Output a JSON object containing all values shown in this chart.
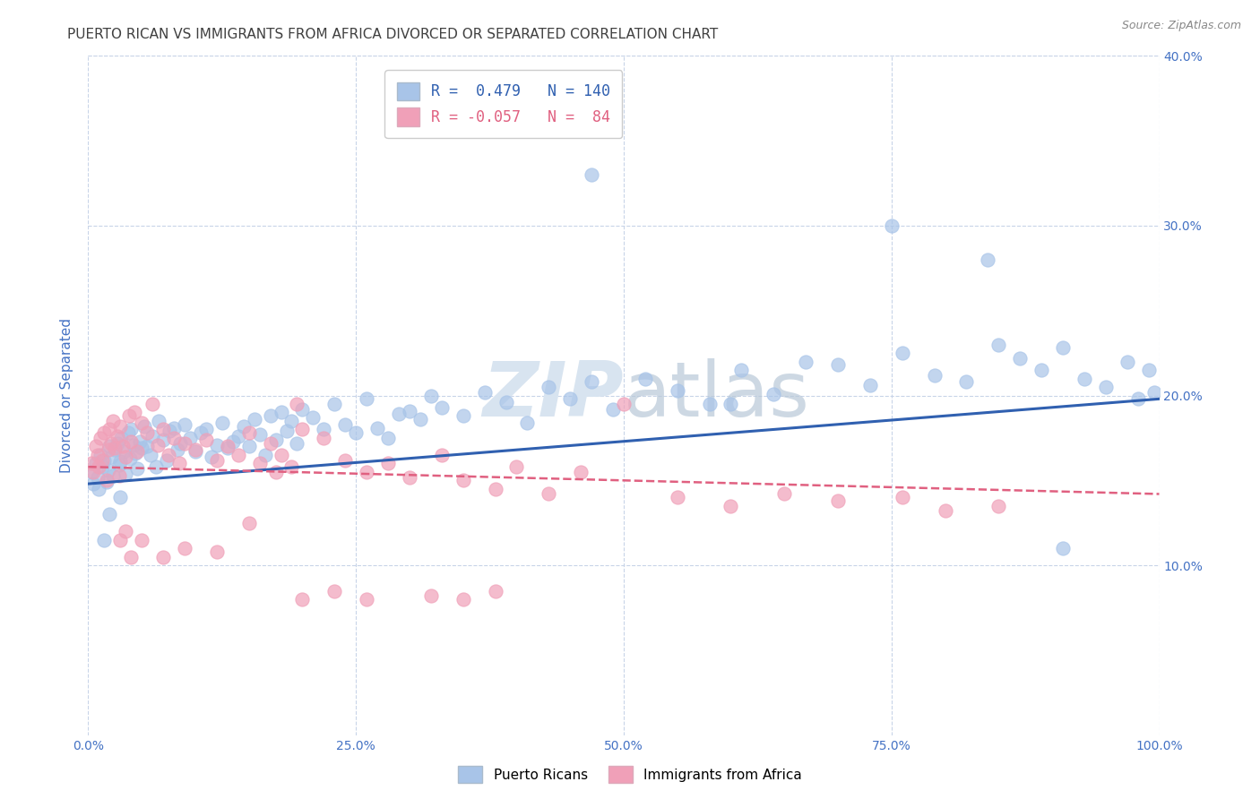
{
  "title": "PUERTO RICAN VS IMMIGRANTS FROM AFRICA DIVORCED OR SEPARATED CORRELATION CHART",
  "source": "Source: ZipAtlas.com",
  "ylabel": "Divorced or Separated",
  "watermark": "ZIPatlas",
  "legend_line1": "R =  0.479   N = 140",
  "legend_line2": "R = -0.057   N =  84",
  "legend_label1": "Puerto Ricans",
  "legend_label2": "Immigrants from Africa",
  "scatter_color_blue": "#a8c4e8",
  "scatter_color_pink": "#f0a0b8",
  "line_color_blue": "#3060b0",
  "line_color_pink": "#e06080",
  "background_color": "#ffffff",
  "grid_color": "#c8d4e8",
  "title_color": "#404040",
  "axis_label_color": "#4472c4",
  "watermark_color": "#d8e4f0",
  "xlim": [
    0,
    100
  ],
  "ylim": [
    0,
    40
  ],
  "blue_line_x": [
    0,
    100
  ],
  "blue_line_y": [
    14.8,
    19.8
  ],
  "pink_line_x": [
    0,
    100
  ],
  "pink_line_y": [
    15.8,
    14.2
  ],
  "blue_scatter_x": [
    0.3,
    0.5,
    0.7,
    0.9,
    1.0,
    1.1,
    1.3,
    1.5,
    1.7,
    1.9,
    2.0,
    2.1,
    2.3,
    2.5,
    2.7,
    2.9,
    3.0,
    3.1,
    3.3,
    3.5,
    3.7,
    3.9,
    4.0,
    4.2,
    4.4,
    4.6,
    4.8,
    5.0,
    5.2,
    5.5,
    5.8,
    6.0,
    6.3,
    6.6,
    7.0,
    7.3,
    7.6,
    8.0,
    8.3,
    8.6,
    9.0,
    9.5,
    10.0,
    10.5,
    11.0,
    11.5,
    12.0,
    12.5,
    13.0,
    13.5,
    14.0,
    14.5,
    15.0,
    15.5,
    16.0,
    16.5,
    17.0,
    17.5,
    18.0,
    18.5,
    19.0,
    19.5,
    20.0,
    21.0,
    22.0,
    23.0,
    24.0,
    25.0,
    26.0,
    27.0,
    28.0,
    29.0,
    30.0,
    31.0,
    32.0,
    33.0,
    35.0,
    37.0,
    39.0,
    41.0,
    43.0,
    45.0,
    47.0,
    49.0,
    52.0,
    55.0,
    58.0,
    61.0,
    64.0,
    67.0,
    70.0,
    73.0,
    76.0,
    79.0,
    82.0,
    85.0,
    87.0,
    89.0,
    91.0,
    93.0,
    95.0,
    97.0,
    98.0,
    99.0,
    99.5,
    47.0,
    60.0,
    75.0,
    84.0,
    91.0,
    1.5,
    2.0,
    3.0
  ],
  "blue_scatter_y": [
    15.5,
    14.8,
    16.0,
    15.2,
    14.5,
    16.5,
    15.8,
    16.2,
    14.9,
    15.6,
    17.0,
    16.4,
    15.3,
    16.8,
    17.2,
    15.9,
    16.1,
    17.5,
    16.7,
    15.4,
    17.8,
    16.3,
    18.0,
    17.1,
    16.6,
    15.7,
    17.3,
    16.9,
    18.2,
    17.0,
    16.5,
    17.6,
    15.8,
    18.5,
    17.4,
    16.2,
    17.9,
    18.1,
    16.8,
    17.2,
    18.3,
    17.5,
    16.7,
    17.8,
    18.0,
    16.4,
    17.1,
    18.4,
    16.9,
    17.3,
    17.6,
    18.2,
    17.0,
    18.6,
    17.7,
    16.5,
    18.8,
    17.4,
    19.0,
    17.9,
    18.5,
    17.2,
    19.2,
    18.7,
    18.0,
    19.5,
    18.3,
    17.8,
    19.8,
    18.1,
    17.5,
    18.9,
    19.1,
    18.6,
    20.0,
    19.3,
    18.8,
    20.2,
    19.6,
    18.4,
    20.5,
    19.8,
    20.8,
    19.2,
    21.0,
    20.3,
    19.5,
    21.5,
    20.1,
    22.0,
    21.8,
    20.6,
    22.5,
    21.2,
    20.8,
    23.0,
    22.2,
    21.5,
    22.8,
    21.0,
    20.5,
    22.0,
    19.8,
    21.5,
    20.2,
    33.0,
    19.5,
    30.0,
    28.0,
    11.0,
    11.5,
    13.0,
    14.0
  ],
  "pink_scatter_x": [
    0.3,
    0.5,
    0.7,
    0.9,
    1.0,
    1.1,
    1.3,
    1.5,
    1.7,
    1.9,
    2.0,
    2.1,
    2.3,
    2.5,
    2.7,
    2.9,
    3.0,
    3.2,
    3.5,
    3.8,
    4.0,
    4.3,
    4.6,
    5.0,
    5.5,
    6.0,
    6.5,
    7.0,
    7.5,
    8.0,
    8.5,
    9.0,
    10.0,
    11.0,
    12.0,
    13.0,
    14.0,
    15.0,
    16.0,
    17.0,
    18.0,
    19.0,
    20.0,
    22.0,
    24.0,
    26.0,
    28.0,
    30.0,
    33.0,
    35.0,
    38.0,
    40.0,
    43.0,
    46.0,
    50.0,
    55.0,
    60.0,
    65.0,
    70.0,
    76.0,
    80.0,
    85.0,
    3.5,
    5.0,
    7.0,
    9.0,
    12.0,
    15.0,
    20.0,
    23.0,
    26.0,
    32.0,
    38.0,
    3.0,
    4.0,
    17.5,
    19.5,
    35.0
  ],
  "pink_scatter_y": [
    16.0,
    15.5,
    17.0,
    16.5,
    15.8,
    17.5,
    16.2,
    17.8,
    15.0,
    16.8,
    18.0,
    17.2,
    18.5,
    16.9,
    17.6,
    15.3,
    18.2,
    17.0,
    16.4,
    18.8,
    17.3,
    19.0,
    16.7,
    18.4,
    17.8,
    19.5,
    17.1,
    18.0,
    16.5,
    17.5,
    16.0,
    17.2,
    16.8,
    17.4,
    16.2,
    17.0,
    16.5,
    17.8,
    16.0,
    17.2,
    16.5,
    15.8,
    18.0,
    17.5,
    16.2,
    15.5,
    16.0,
    15.2,
    16.5,
    15.0,
    14.5,
    15.8,
    14.2,
    15.5,
    19.5,
    14.0,
    13.5,
    14.2,
    13.8,
    14.0,
    13.2,
    13.5,
    12.0,
    11.5,
    10.5,
    11.0,
    10.8,
    12.5,
    8.0,
    8.5,
    8.0,
    8.2,
    8.5,
    11.5,
    10.5,
    15.5,
    19.5,
    8.0
  ]
}
